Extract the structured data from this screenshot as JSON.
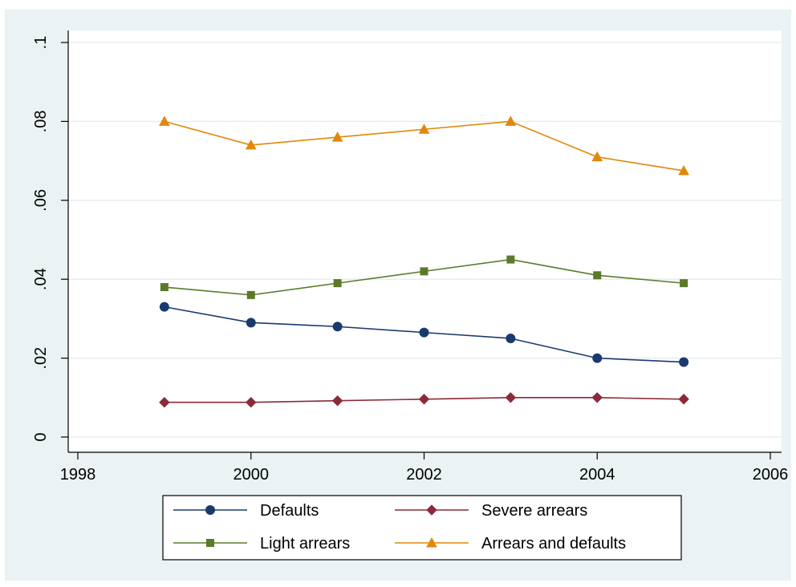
{
  "chart_data": {
    "type": "line",
    "x": [
      1999,
      2000,
      2001,
      2002,
      2003,
      2004,
      2005
    ],
    "xlim": [
      1998,
      2006
    ],
    "ylim": [
      0,
      0.1
    ],
    "xticks": [
      1998,
      2000,
      2002,
      2004,
      2006
    ],
    "xtick_labels": [
      "1998",
      "2000",
      "2002",
      "2004",
      "2006"
    ],
    "yticks": [
      0,
      0.02,
      0.04,
      0.06,
      0.08,
      0.1
    ],
    "ytick_labels": [
      "0",
      ".02",
      ".04",
      ".06",
      ".08",
      ".1"
    ],
    "grid": true,
    "legend_position": "bottom",
    "series": [
      {
        "name": "Defaults",
        "color": "#1a3a6e",
        "marker": "circle",
        "values": [
          0.033,
          0.029,
          0.028,
          0.0265,
          0.025,
          0.02,
          0.019
        ]
      },
      {
        "name": "Severe arrears",
        "color": "#8b2a3a",
        "marker": "diamond",
        "values": [
          0.0088,
          0.0088,
          0.0092,
          0.0096,
          0.01,
          0.01,
          0.0096
        ]
      },
      {
        "name": "Light arrears",
        "color": "#5a7a2a",
        "marker": "square",
        "values": [
          0.038,
          0.036,
          0.039,
          0.042,
          0.045,
          0.041,
          0.039
        ]
      },
      {
        "name": "Arrears and defaults",
        "color": "#e0880a",
        "marker": "triangle",
        "values": [
          0.08,
          0.074,
          0.076,
          0.078,
          0.08,
          0.071,
          0.0675
        ]
      }
    ]
  }
}
